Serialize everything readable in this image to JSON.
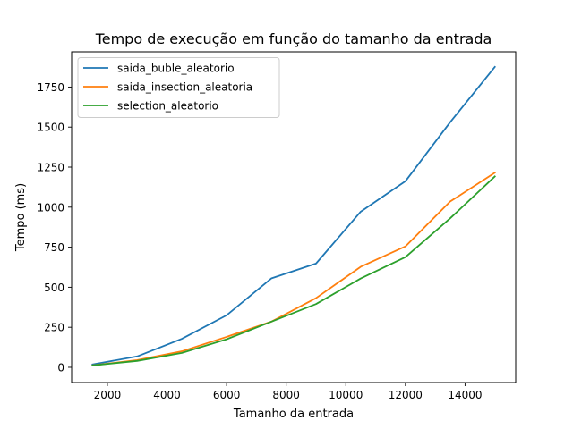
{
  "chart_data": {
    "type": "line",
    "title": "Tempo de execução em função do tamanho da entrada",
    "xlabel": "Tamanho da entrada",
    "ylabel": "Tempo (ms)",
    "xlim": [
      800,
      15700
    ],
    "ylim": [
      -95,
      1970
    ],
    "xticks": [
      2000,
      4000,
      6000,
      8000,
      10000,
      12000,
      14000
    ],
    "xtick_labels": [
      "2000",
      "4000",
      "6000",
      "8000",
      "10000",
      "12000",
      "14000"
    ],
    "yticks": [
      0,
      250,
      500,
      750,
      1000,
      1250,
      1500,
      1750
    ],
    "ytick_labels": [
      "0",
      "250",
      "500",
      "750",
      "1000",
      "1250",
      "1500",
      "1750"
    ],
    "grid": false,
    "legend_position": "top-left",
    "x": [
      1500,
      3000,
      4500,
      6000,
      7500,
      9000,
      10500,
      12000,
      13500,
      15000
    ],
    "series": [
      {
        "name": "saida_buble_aleatorio",
        "color": "#1f77b4",
        "values": [
          18,
          68,
          178,
          325,
          555,
          648,
          972,
          1162,
          1530,
          1876
        ]
      },
      {
        "name": "saida_insection_aleatoria",
        "color": "#ff7f0e",
        "values": [
          12,
          45,
          100,
          190,
          285,
          432,
          628,
          755,
          1035,
          1215
        ]
      },
      {
        "name": "selection_aleatorio",
        "color": "#2ca02c",
        "values": [
          12,
          40,
          90,
          175,
          285,
          395,
          555,
          688,
          930,
          1192
        ]
      }
    ]
  }
}
